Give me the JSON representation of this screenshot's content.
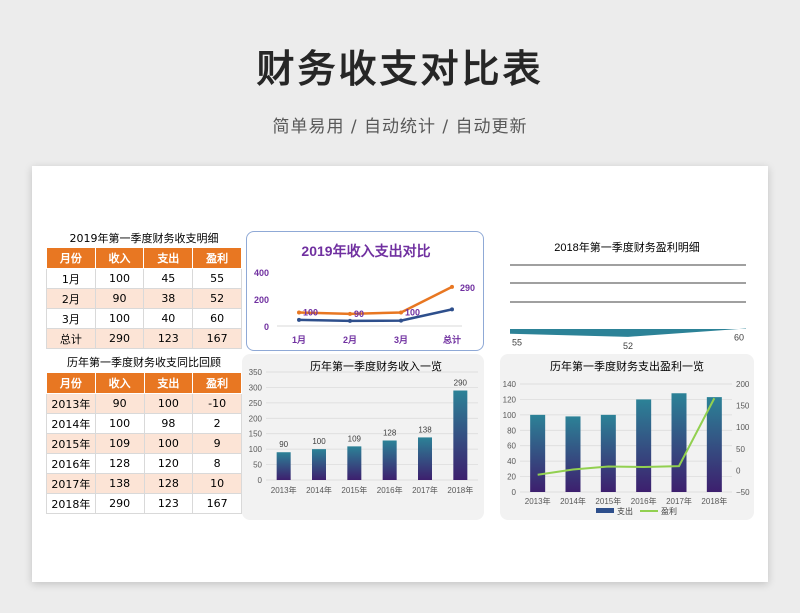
{
  "page": {
    "title": "财务收支对比表",
    "subtitle": "简单易用  /  自动统计  /  自动更新"
  },
  "table1": {
    "caption": "2019年第一季度财务收支明细",
    "headers": [
      "月份",
      "收入",
      "支出",
      "盈利"
    ],
    "rows": [
      [
        "1月",
        "100",
        "45",
        "55"
      ],
      [
        "2月",
        "90",
        "38",
        "52"
      ],
      [
        "3月",
        "100",
        "40",
        "60"
      ],
      [
        "总计",
        "290",
        "123",
        "167"
      ]
    ]
  },
  "table2": {
    "caption": "历年第一季度财务收支同比回顾",
    "headers": [
      "月份",
      "收入",
      "支出",
      "盈利"
    ],
    "rows": [
      [
        "2013年",
        "90",
        "100",
        "-10"
      ],
      [
        "2014年",
        "100",
        "98",
        "2"
      ],
      [
        "2015年",
        "109",
        "100",
        "9"
      ],
      [
        "2016年",
        "128",
        "120",
        "8"
      ],
      [
        "2017年",
        "138",
        "128",
        "10"
      ],
      [
        "2018年",
        "290",
        "123",
        "167"
      ]
    ]
  },
  "colors": {
    "orange": "#e87722",
    "navy": "#2e4f8c",
    "teal": "#2c8297",
    "purple": "#3d1f6e",
    "green": "#92d050",
    "title_purple": "#7030a0"
  },
  "chart_data": [
    {
      "type": "line",
      "title": "2019年收入支出对比",
      "categories": [
        "1月",
        "2月",
        "3月",
        "总计"
      ],
      "series": [
        {
          "values": [
            100,
            90,
            100,
            290
          ]
        },
        {
          "values": [
            45,
            38,
            40,
            123
          ]
        }
      ],
      "data_labels": [
        "100",
        "90",
        "100",
        "290"
      ],
      "yticks": [
        "0",
        "200",
        "400"
      ],
      "ylim": [
        0,
        400
      ],
      "legend": "none"
    },
    {
      "type": "area",
      "title": "2018年第一季度财务盈利明细",
      "values": [
        55,
        52,
        60
      ],
      "data_labels": [
        "55",
        "52",
        "60"
      ],
      "ylim": [
        0,
        125
      ]
    },
    {
      "type": "bar",
      "title": "历年第一季度财务收入一览",
      "categories": [
        "2013年",
        "2014年",
        "2015年",
        "2016年",
        "2017年",
        "2018年"
      ],
      "values": [
        90,
        100,
        109,
        128,
        138,
        290
      ],
      "yticks": [
        "0",
        "50",
        "100",
        "150",
        "200",
        "250",
        "300",
        "350"
      ],
      "ylim": [
        0,
        350
      ],
      "grid": true
    },
    {
      "type": "bar",
      "title": "历年第一季度财务支出盈利一览",
      "categories": [
        "2013年",
        "2014年",
        "2015年",
        "2016年",
        "2017年",
        "2018年"
      ],
      "series": [
        {
          "name": "支出",
          "type": "bar",
          "axis": "left",
          "values": [
            100,
            98,
            100,
            120,
            128,
            123
          ]
        },
        {
          "name": "盈利",
          "type": "line",
          "axis": "right",
          "values": [
            -10,
            2,
            9,
            8,
            10,
            167
          ]
        }
      ],
      "yticks_left": [
        "0",
        "20",
        "40",
        "60",
        "80",
        "100",
        "120",
        "140"
      ],
      "ylim_left": [
        0,
        140
      ],
      "yticks_right": [
        "−50",
        "0",
        "50",
        "100",
        "150",
        "200"
      ],
      "ylim_right": [
        -50,
        200
      ],
      "legend": "bottom"
    }
  ]
}
